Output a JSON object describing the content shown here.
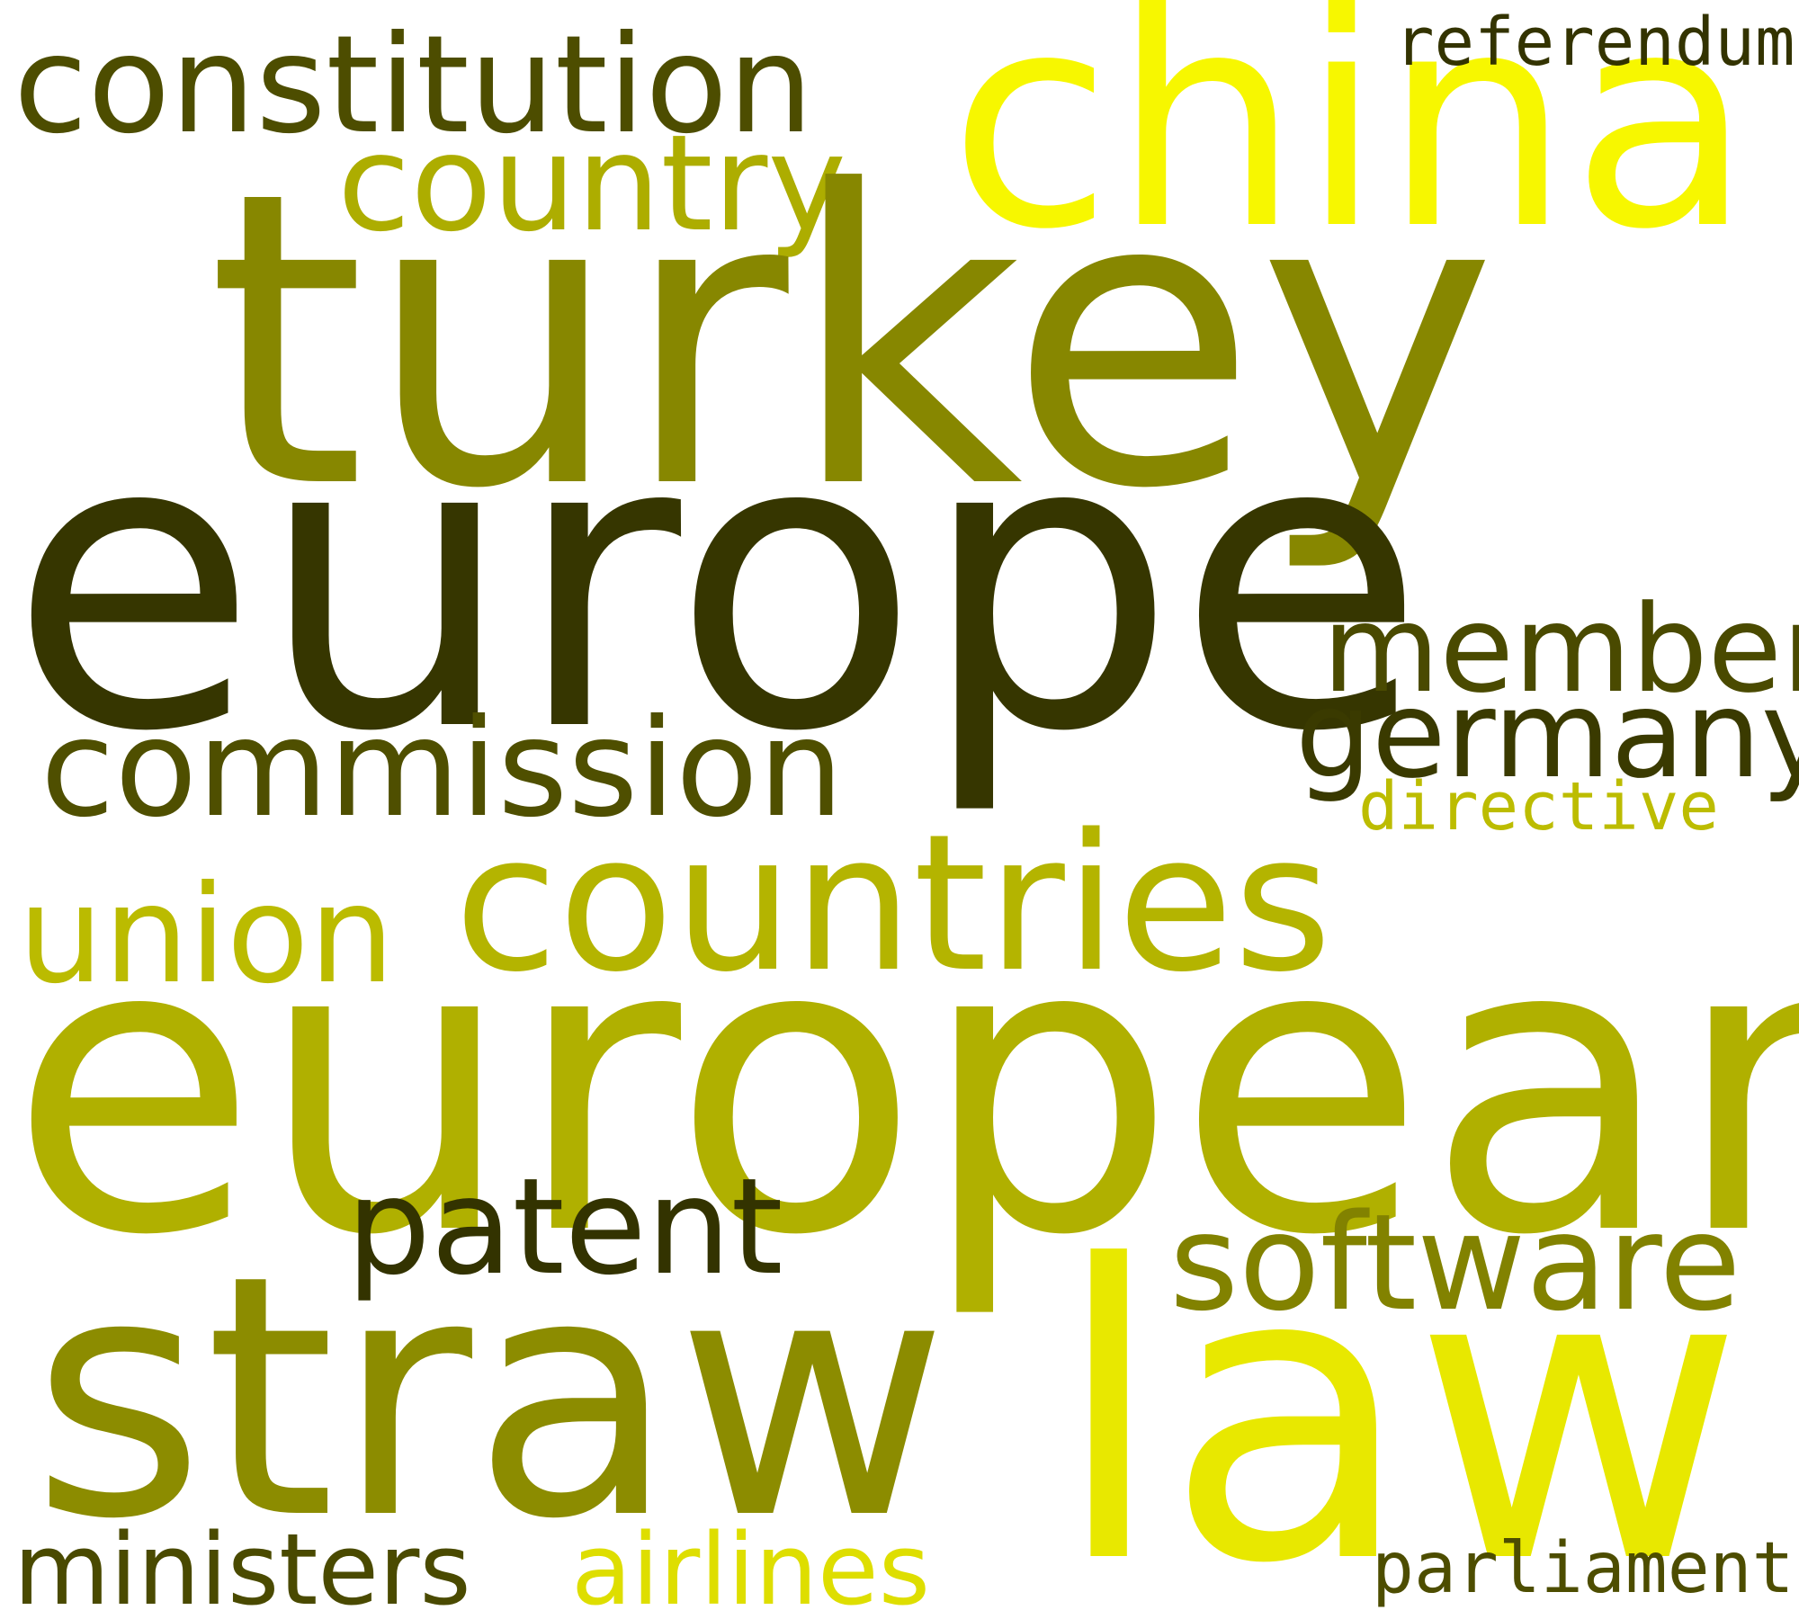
{
  "words": {
    "constitution": {
      "text": "constitution",
      "color": "#4d4d00"
    },
    "china": {
      "text": "china",
      "color": "#f7f700"
    },
    "referendum": {
      "text": "referendum",
      "color": "#333300"
    },
    "country": {
      "text": "country",
      "color": "#adad00"
    },
    "turkey": {
      "text": "turkey",
      "color": "#878700"
    },
    "europe": {
      "text": "europe",
      "color": "#363600"
    },
    "member": {
      "text": "member",
      "color": "#4a4a00"
    },
    "germany": {
      "text": "germany",
      "color": "#3a3a00"
    },
    "commission": {
      "text": "commission",
      "color": "#4f4f00"
    },
    "directive": {
      "text": "directive",
      "color": "#bcbc00"
    },
    "countries": {
      "text": "countries",
      "color": "#b4b400"
    },
    "union": {
      "text": "union",
      "color": "#bbbb00"
    },
    "european": {
      "text": "european",
      "color": "#b0b000"
    },
    "patent": {
      "text": "patent",
      "color": "#333300"
    },
    "software": {
      "text": "software",
      "color": "#828200"
    },
    "straw": {
      "text": "straw",
      "color": "#8c8c00"
    },
    "law": {
      "text": "law",
      "color": "#e8e800"
    },
    "ministers": {
      "text": "ministers",
      "color": "#4a4a00"
    },
    "airlines": {
      "text": "airlines",
      "color": "#dede00"
    },
    "parliament": {
      "text": "parliament",
      "color": "#4d4d00"
    }
  }
}
